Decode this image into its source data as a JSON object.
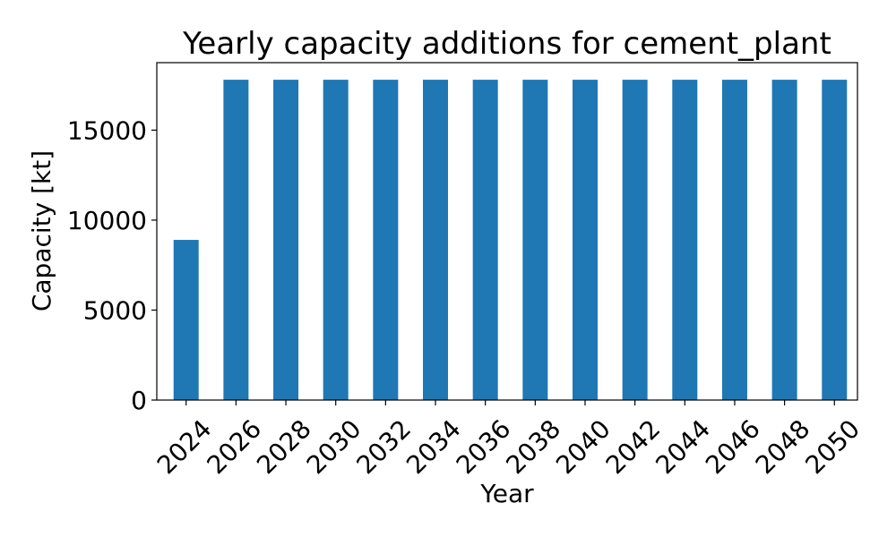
{
  "chart_data": {
    "type": "bar",
    "title": "Yearly capacity additions for cement_plant",
    "xlabel": "Year",
    "ylabel": "Capacity [kt]",
    "categories": [
      "2024",
      "2026",
      "2028",
      "2030",
      "2032",
      "2034",
      "2036",
      "2038",
      "2040",
      "2042",
      "2044",
      "2046",
      "2048",
      "2050"
    ],
    "values": [
      8900,
      17800,
      17800,
      17800,
      17800,
      17800,
      17800,
      17800,
      17800,
      17800,
      17800,
      17800,
      17800,
      17800
    ],
    "ylim": [
      0,
      18750
    ],
    "yticks": [
      0,
      5000,
      10000,
      15000
    ],
    "ytick_labels": [
      "0",
      "5000",
      "10000",
      "15000"
    ],
    "bar_color": "#1f77b4",
    "grid": false,
    "legend": "none"
  }
}
